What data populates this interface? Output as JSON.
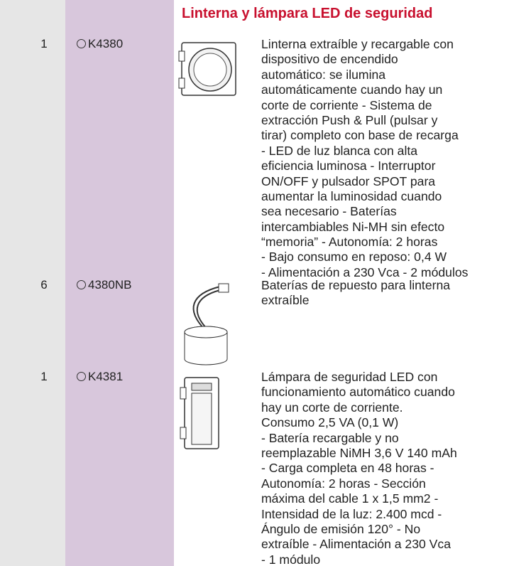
{
  "title": "Linterna y lámpara LED de seguridad",
  "items": [
    {
      "quantity": "1",
      "code": "K4380",
      "description": [
        "Linterna extraíble y recargable con",
        "dispositivo de encendido",
        "automático: se ilumina",
        "automáticamente cuando hay un",
        "corte de corriente - Sistema de",
        "extracción Push & Pull (pulsar y",
        "tirar) completo con base de recarga",
        "- LED de luz blanca con alta",
        "eficiencia luminosa - Interruptor",
        "ON/OFF y pulsador SPOT para",
        "aumentar la luminosidad cuando",
        "sea necesario - Baterías",
        "intercambiables Ni-MH sin efecto",
        "“memoria” - Autonomía: 2 horas",
        "- Bajo consumo en reposo: 0,4 W",
        "- Alimentación a 230 Vca - 2 módulos"
      ]
    },
    {
      "quantity": "6",
      "code": "4380NB",
      "description": [
        "Baterías de repuesto para linterna",
        "extraíble"
      ]
    },
    {
      "quantity": "1",
      "code": "K4381",
      "description": [
        "Lámpara de seguridad LED con",
        "funcionamiento automático cuando",
        "hay un corte de corriente.",
        "Consumo 2,5 VA (0,1 W)",
        "- Batería recargable y no",
        "reemplazable NiMH 3,6 V 140 mAh",
        "- Carga completa en 48 horas -",
        "Autonomía: 2 horas - Sección",
        "máxima del cable 1 x 1,5 mm2 -",
        "Intensidad de la luz: 2.400 mcd -",
        "Ángulo de emisión 120° - No",
        "extraíble - Alimentación a 230 Vca",
        "- 1 módulo"
      ]
    }
  ]
}
